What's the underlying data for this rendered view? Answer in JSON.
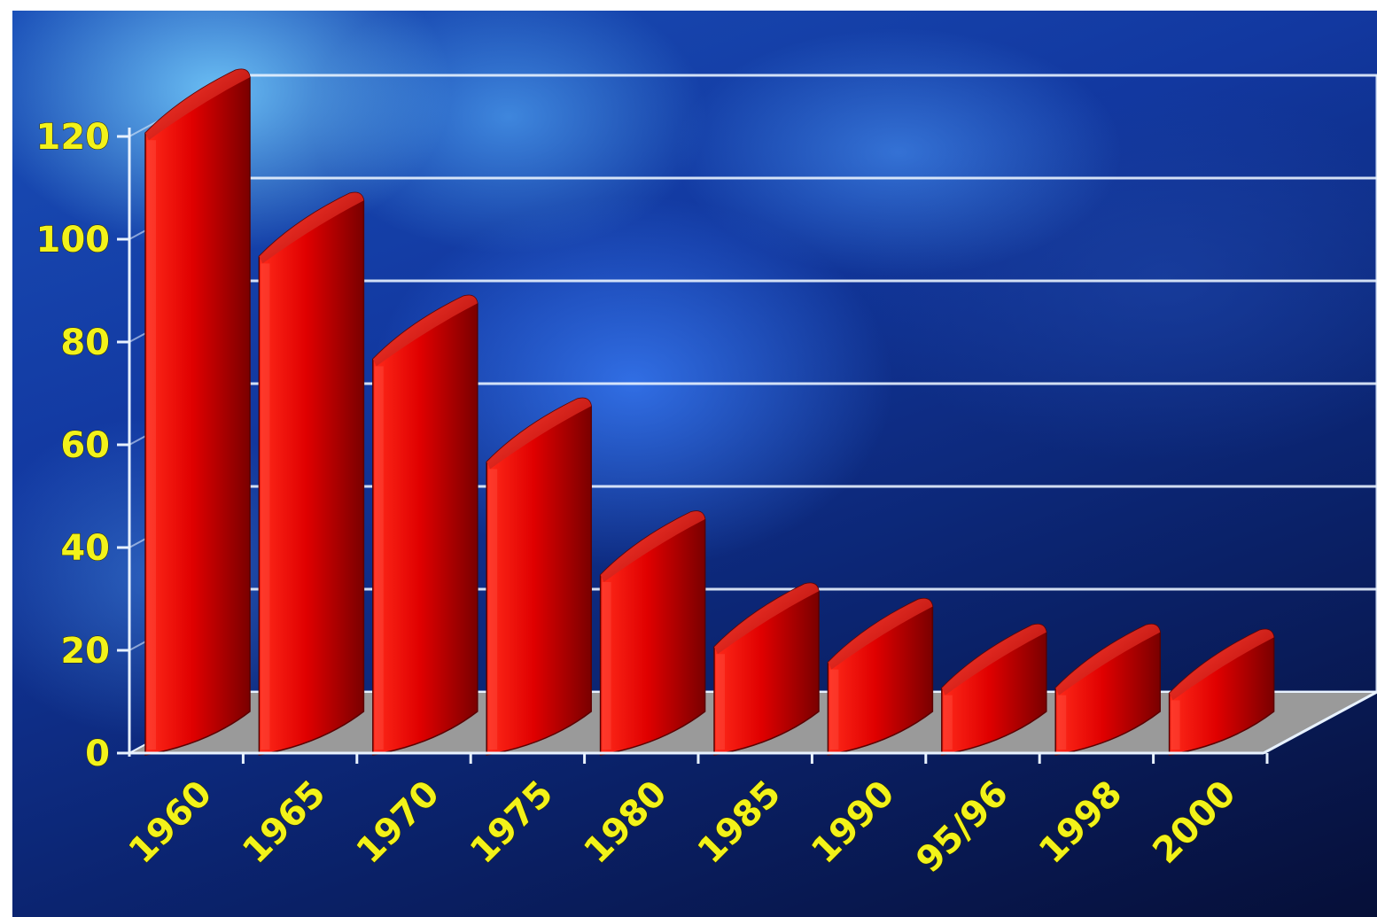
{
  "chart_data": {
    "type": "bar",
    "title": "",
    "xlabel": "",
    "ylabel": "",
    "categories": [
      "1960",
      "1965",
      "1970",
      "1975",
      "1980",
      "1985",
      "1990",
      "95/96",
      "1998",
      "2000"
    ],
    "series": [
      {
        "values": [
          121,
          97,
          77,
          57,
          35,
          21,
          18,
          13,
          13,
          12
        ]
      }
    ],
    "ylim": [
      0,
      120
    ],
    "yticks": [
      "0",
      "20",
      "40",
      "60",
      "80",
      "100",
      "120"
    ],
    "grid": true,
    "style": "3d-cylinder",
    "colors": {
      "bar": "#d40000",
      "grid": "#e8f2ff",
      "floor": "#9a9a9a",
      "tick_label": "#f2f21a"
    }
  }
}
